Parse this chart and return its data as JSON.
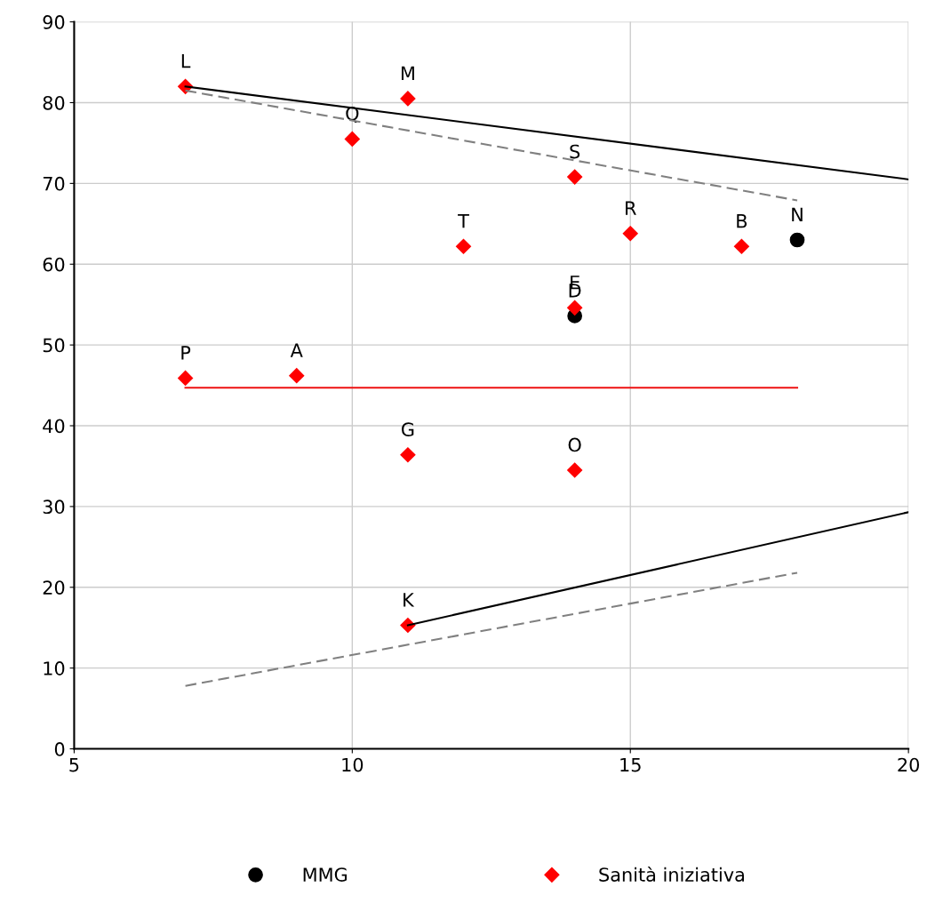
{
  "chart_data": {
    "type": "scatter",
    "xlim": [
      5,
      20
    ],
    "ylim": [
      0,
      90
    ],
    "xticks": [
      5,
      10,
      15,
      20
    ],
    "yticks": [
      0,
      10,
      20,
      30,
      40,
      50,
      60,
      70,
      80,
      90
    ],
    "grid": true,
    "legend": "bottom",
    "series": [
      {
        "name": "MMG",
        "marker": "circle",
        "color": "#000000",
        "x": [
          14,
          18
        ],
        "values": [
          53.6,
          63.0
        ]
      },
      {
        "name": "Sanità iniziativa",
        "marker": "diamond",
        "color": "#ff0000",
        "x": [
          7,
          11,
          10,
          14,
          12,
          15,
          17,
          14,
          7,
          9,
          11,
          14,
          11
        ],
        "values": [
          82.0,
          80.5,
          75.5,
          70.8,
          62.2,
          63.8,
          62.2,
          54.6,
          45.9,
          46.2,
          36.4,
          34.5,
          15.3
        ]
      },
      {
        "type": "line",
        "line_style": "solid",
        "color": "#000000",
        "x": [
          7,
          20
        ],
        "values": [
          82.0,
          70.5
        ]
      },
      {
        "type": "line",
        "line_style": "solid",
        "color": "#000000",
        "x": [
          11,
          20
        ],
        "values": [
          15.3,
          29.3
        ]
      },
      {
        "type": "line",
        "line_style": "dashed",
        "color": "#808080",
        "x": [
          7,
          18
        ],
        "values": [
          81.5,
          67.9
        ]
      },
      {
        "type": "line",
        "line_style": "dashed",
        "color": "#808080",
        "x": [
          7,
          18
        ],
        "values": [
          7.8,
          21.8
        ]
      },
      {
        "type": "line",
        "line_style": "solid",
        "color": "#ee1111",
        "x": [
          7,
          18
        ],
        "values": [
          44.7,
          44.7
        ]
      }
    ],
    "annotations": [
      {
        "text": "L",
        "x": 7,
        "y": 82.0
      },
      {
        "text": "M",
        "x": 11,
        "y": 80.5
      },
      {
        "text": "Q",
        "x": 10,
        "y": 75.5
      },
      {
        "text": "S",
        "x": 14,
        "y": 70.8
      },
      {
        "text": "T",
        "x": 12,
        "y": 62.2
      },
      {
        "text": "R",
        "x": 15,
        "y": 63.8
      },
      {
        "text": "B",
        "x": 17,
        "y": 62.2
      },
      {
        "text": "N",
        "x": 18,
        "y": 63.0
      },
      {
        "text": "E",
        "x": 14,
        "y": 54.6
      },
      {
        "text": "D",
        "x": 14,
        "y": 53.6
      },
      {
        "text": "P",
        "x": 7,
        "y": 45.9
      },
      {
        "text": "A",
        "x": 9,
        "y": 46.2
      },
      {
        "text": "G",
        "x": 11,
        "y": 36.4
      },
      {
        "text": "O",
        "x": 14,
        "y": 34.5
      },
      {
        "text": "K",
        "x": 11,
        "y": 15.3
      }
    ]
  }
}
